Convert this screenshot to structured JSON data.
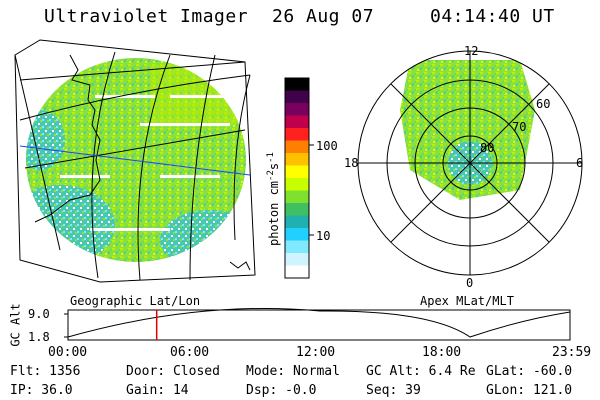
{
  "header": {
    "instrument": "Ultraviolet Imager",
    "date": "26 Aug 07",
    "time": "04:14:40 UT"
  },
  "colorbar": {
    "label": "photon cm",
    "label_sup1": "-2",
    "label_s": "s",
    "label_sup2": "-1",
    "ticks": [
      "100",
      "10"
    ],
    "colors": [
      "#000000",
      "#40004a",
      "#7a0060",
      "#c0004a",
      "#ff2020",
      "#ff8000",
      "#ffc000",
      "#ffff00",
      "#c8ff00",
      "#80e030",
      "#40c060",
      "#20b0b0",
      "#20d0ff",
      "#80e8ff",
      "#d0f4ff",
      "#ffffff"
    ]
  },
  "geo_panel": {
    "label": "Geographic Lat/Lon"
  },
  "polar_panel": {
    "label": "Apex  MLat/MLT",
    "mlt_labels": {
      "top": "12",
      "left": "18",
      "right": "6",
      "bottom": "0"
    },
    "lat_labels": [
      "60",
      "70",
      "80"
    ]
  },
  "timeline": {
    "ylabel": "GC Alt",
    "ymax": "9.0",
    "ymin": "1.8",
    "xticks": [
      "00:00",
      "06:00",
      "12:00",
      "18:00",
      "23:59"
    ],
    "current_hour": 4.24
  },
  "footer": {
    "flt": "Flt: 1356",
    "ip": "IP: 36.0",
    "door": "Door: Closed",
    "gain": "Gain: 14",
    "mode": "Mode: Normal",
    "dsp": "Dsp:   -0.0",
    "gcalt": "GC Alt: 6.4 Re",
    "seq": "Seq: 39",
    "glat": "GLat: -60.0",
    "glon": "GLon: 121.0"
  }
}
